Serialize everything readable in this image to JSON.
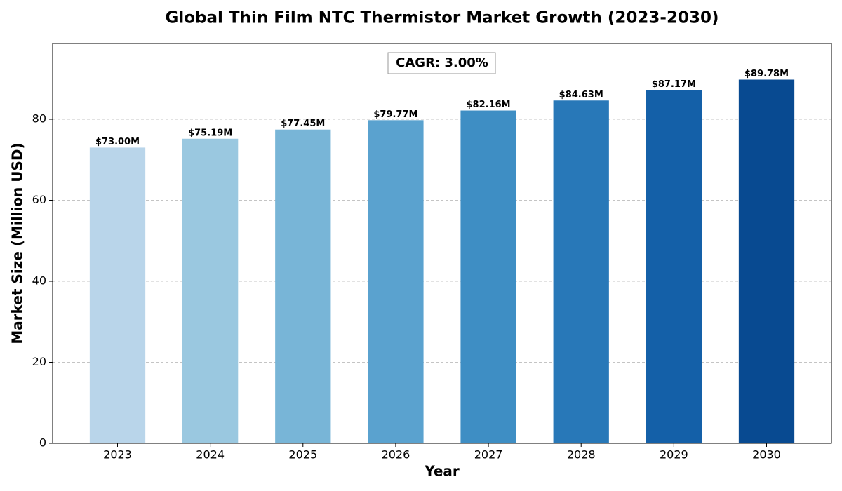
{
  "chart_data": {
    "type": "bar",
    "title": "Global Thin Film NTC Thermistor Market Growth (2023-2030)",
    "x_label": "Year",
    "y_label": "Market Size (Million USD)",
    "annotation": "CAGR: 3.00%",
    "categories": [
      "2023",
      "2024",
      "2025",
      "2026",
      "2027",
      "2028",
      "2029",
      "2030"
    ],
    "values": [
      73.0,
      75.19,
      77.45,
      79.77,
      82.16,
      84.63,
      87.17,
      89.78
    ],
    "value_labels": [
      "$73.00M",
      "$75.19M",
      "$77.45M",
      "$79.77M",
      "$82.16M",
      "$84.63M",
      "$87.17M",
      "$89.78M"
    ],
    "colors": [
      "#b9d5ea",
      "#9ac8e0",
      "#78b5d7",
      "#5aa2cf",
      "#3e8ec4",
      "#2878b8",
      "#1460a8",
      "#084a91"
    ],
    "ylim": [
      0,
      98.7
    ],
    "yticks": [
      0,
      20,
      40,
      60,
      80
    ],
    "grid": true
  }
}
